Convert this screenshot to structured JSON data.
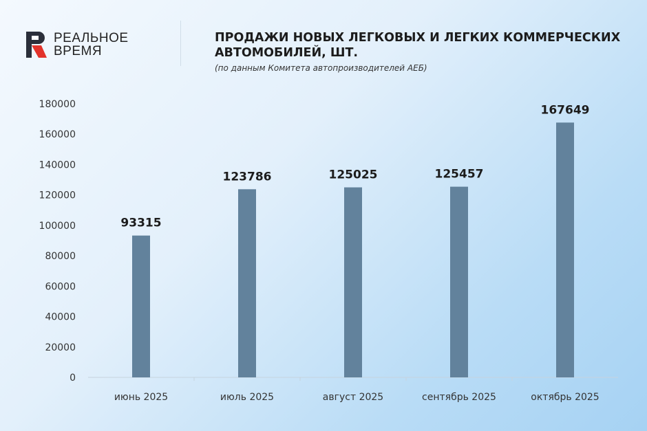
{
  "logo": {
    "line1": "РЕАЛЬНОЕ",
    "line2": "ВРЕМЯ",
    "colors": {
      "red": "#e2332b",
      "dark": "#2b2f3a"
    }
  },
  "header": {
    "title": "ПРОДАЖИ НОВЫХ ЛЕГКОВЫХ И ЛЕГКИХ КОММЕРЧЕСКИХ АВТОМОБИЛЕЙ, ШТ.",
    "subtitle": "(по данным Комитета автопроизводителей АЕБ)"
  },
  "chart_data": {
    "type": "bar",
    "categories": [
      "июнь 2025",
      "июль 2025",
      "август 2025",
      "сентябрь 2025",
      "октябрь 2025"
    ],
    "values": [
      93315,
      123786,
      125025,
      125457,
      167649
    ],
    "data_labels": [
      "93315",
      "123786",
      "125025",
      "125457",
      "167649"
    ],
    "ylim": [
      0,
      180000
    ],
    "yticks": [
      "0",
      "20000",
      "40000",
      "60000",
      "80000",
      "100000",
      "120000",
      "140000",
      "160000",
      "180000"
    ],
    "grid": false,
    "bar_color": "#62829c",
    "axis_color": "#c6d3de"
  }
}
